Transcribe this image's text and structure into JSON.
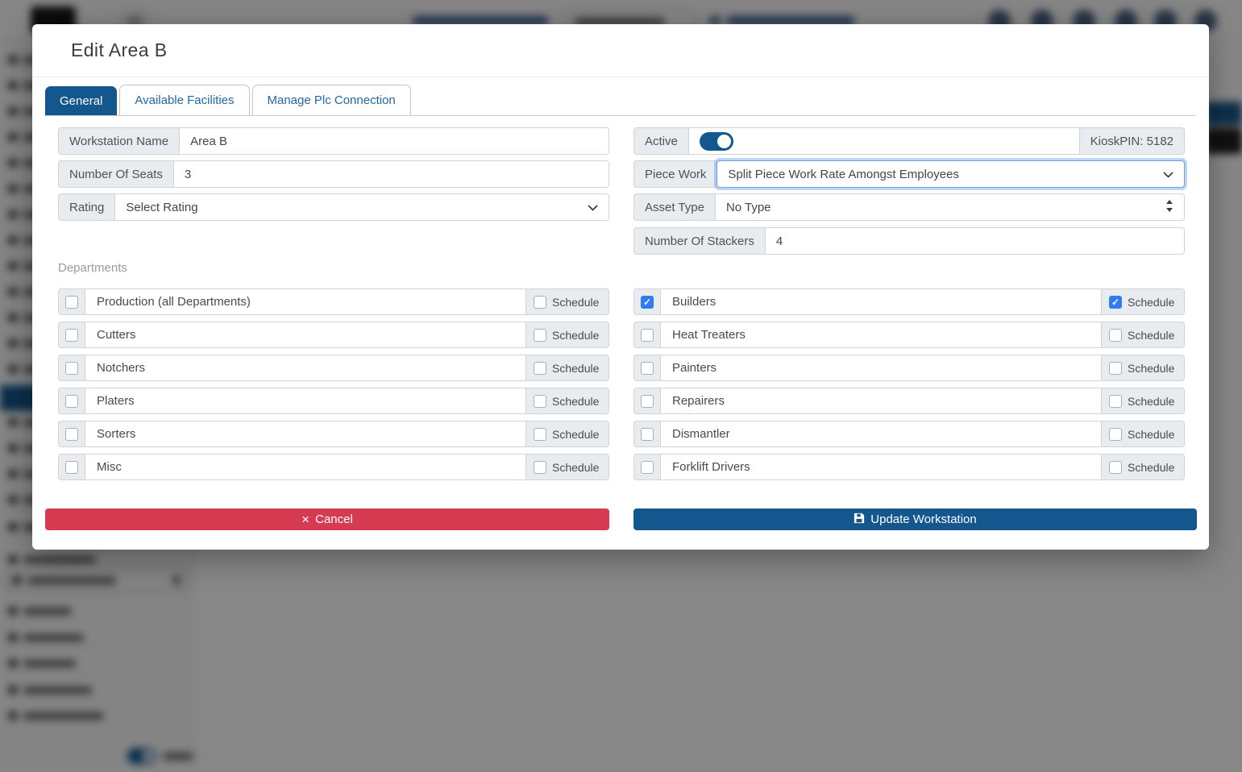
{
  "modal": {
    "title": "Edit Area B",
    "tabs": [
      {
        "label": "General",
        "active": true
      },
      {
        "label": "Available Facilities",
        "active": false
      },
      {
        "label": "Manage Plc Connection",
        "active": false
      }
    ],
    "general": {
      "workstation_name": {
        "label": "Workstation Name",
        "value": "Area B"
      },
      "number_of_seats": {
        "label": "Number Of Seats",
        "value": "3"
      },
      "rating": {
        "label": "Rating",
        "value": "Select Rating"
      },
      "active": {
        "label": "Active",
        "on": true,
        "kiosk_pin": "KioskPIN: 5182"
      },
      "piece_work": {
        "label": "Piece Work",
        "value": "Split Piece Work Rate Amongst Employees"
      },
      "asset_type": {
        "label": "Asset Type",
        "value": "No Type"
      },
      "number_of_stackers": {
        "label": "Number Of Stackers",
        "value": "4"
      }
    },
    "departments": {
      "heading": "Departments",
      "schedule_label": "Schedule",
      "left": [
        {
          "name": "Production (all Departments)",
          "checked": false,
          "schedule": false
        },
        {
          "name": "Cutters",
          "checked": false,
          "schedule": false
        },
        {
          "name": "Notchers",
          "checked": false,
          "schedule": false
        },
        {
          "name": "Platers",
          "checked": false,
          "schedule": false
        },
        {
          "name": "Sorters",
          "checked": false,
          "schedule": false
        },
        {
          "name": "Misc",
          "checked": false,
          "schedule": false
        }
      ],
      "right": [
        {
          "name": "Builders",
          "checked": true,
          "schedule": true
        },
        {
          "name": "Heat Treaters",
          "checked": false,
          "schedule": false
        },
        {
          "name": "Painters",
          "checked": false,
          "schedule": false
        },
        {
          "name": "Repairers",
          "checked": false,
          "schedule": false
        },
        {
          "name": "Dismantler",
          "checked": false,
          "schedule": false
        },
        {
          "name": "Forklift Drivers",
          "checked": false,
          "schedule": false
        }
      ]
    },
    "footer": {
      "cancel_label": "Cancel",
      "update_label": "Update Workstation"
    }
  },
  "icons": {
    "cancel": "×",
    "check": "✓"
  },
  "colors": {
    "primary": "#14578e",
    "danger": "#d63b52",
    "checkbox_checked": "#2e7cf0"
  }
}
